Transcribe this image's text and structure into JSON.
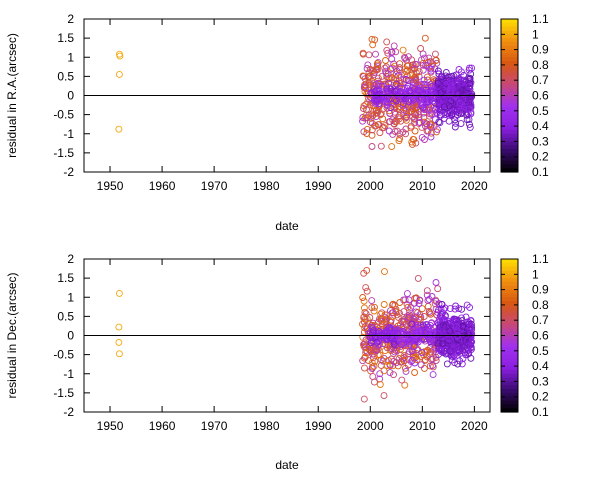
{
  "chart_data": [
    {
      "type": "scatter",
      "xlabel": "date",
      "ylabel": "residual in R.A.(arcsec)",
      "xlim": [
        1945,
        2023
      ],
      "ylim": [
        -2,
        2
      ],
      "x_ticks": [
        "1950",
        "1960",
        "1970",
        "1980",
        "1990",
        "2000",
        "2010",
        "2020"
      ],
      "y_ticks": [
        "-2",
        "-1.5",
        "-1",
        "-0.5",
        "0",
        "0.5",
        "1",
        "1.5",
        "2"
      ],
      "zero_line": true,
      "marker": "open-circle",
      "points": [
        {
          "x": 1951.8,
          "y": 1.08,
          "c": 1.0
        },
        {
          "x": 1951.9,
          "y": 1.03,
          "c": 1.0
        },
        {
          "x": 1951.8,
          "y": 0.55,
          "c": 1.0
        },
        {
          "x": 1951.7,
          "y": -0.88,
          "c": 1.0
        }
      ],
      "clusters": [
        {
          "x_range": [
            1998.5,
            2009
          ],
          "y_sd": 0.55,
          "y_lim": 1.9,
          "count": 330,
          "c_range": [
            0.55,
            0.9
          ]
        },
        {
          "x_range": [
            2008,
            2013
          ],
          "y_sd": 0.6,
          "y_lim": 2.0,
          "count": 150,
          "c_range": [
            0.5,
            0.85
          ]
        },
        {
          "x_range": [
            2000,
            2013
          ],
          "y_sd": 0.15,
          "y_lim": 1.0,
          "count": 160,
          "c_range": [
            0.35,
            0.55
          ]
        },
        {
          "x_range": [
            2013,
            2019.5
          ],
          "y_sd": 0.3,
          "y_lim": 1.9,
          "count": 430,
          "c_range": [
            0.3,
            0.45
          ]
        }
      ],
      "colorbar": {
        "min": 0.1,
        "max": 1.1,
        "ticks": [
          "0.1",
          "0.2",
          "0.3",
          "0.4",
          "0.5",
          "0.6",
          "0.7",
          "0.8",
          "0.9",
          "1",
          "1.1"
        ]
      }
    },
    {
      "type": "scatter",
      "xlabel": "date",
      "ylabel": "residual in Dec.(arcsec)",
      "xlim": [
        1945,
        2023
      ],
      "ylim": [
        -2,
        2
      ],
      "x_ticks": [
        "1950",
        "1960",
        "1970",
        "1980",
        "1990",
        "2000",
        "2010",
        "2020"
      ],
      "y_ticks": [
        "-2",
        "-1.5",
        "-1",
        "-0.5",
        "0",
        "0.5",
        "1",
        "1.5",
        "2"
      ],
      "zero_line": true,
      "marker": "open-circle",
      "points": [
        {
          "x": 1951.8,
          "y": 1.1,
          "c": 1.0
        },
        {
          "x": 1951.7,
          "y": 0.22,
          "c": 1.0
        },
        {
          "x": 1951.7,
          "y": -0.18,
          "c": 1.0
        },
        {
          "x": 1951.8,
          "y": -0.48,
          "c": 1.0
        }
      ],
      "clusters": [
        {
          "x_range": [
            1998.5,
            2009
          ],
          "y_sd": 0.5,
          "y_lim": 1.9,
          "count": 320,
          "c_range": [
            0.55,
            0.9
          ]
        },
        {
          "x_range": [
            2008,
            2013
          ],
          "y_sd": 0.55,
          "y_lim": 1.9,
          "count": 140,
          "c_range": [
            0.5,
            0.85
          ]
        },
        {
          "x_range": [
            2000,
            2013
          ],
          "y_sd": 0.12,
          "y_lim": 1.0,
          "count": 160,
          "c_range": [
            0.35,
            0.55
          ]
        },
        {
          "x_range": [
            2013,
            2019.5
          ],
          "y_sd": 0.28,
          "y_lim": 2.0,
          "count": 420,
          "c_range": [
            0.3,
            0.45
          ]
        }
      ],
      "colorbar": {
        "min": 0.1,
        "max": 1.1,
        "ticks": [
          "0.1",
          "0.2",
          "0.3",
          "0.4",
          "0.5",
          "0.6",
          "0.7",
          "0.8",
          "0.9",
          "1",
          "1.1"
        ]
      }
    }
  ],
  "colors": {
    "palette": [
      "#000000",
      "#3a0b6e",
      "#8a1ee0",
      "#a030f0",
      "#c84878",
      "#d85810",
      "#f09010",
      "#ffe000"
    ],
    "zero_line": "#000000",
    "axes": "#000000"
  }
}
